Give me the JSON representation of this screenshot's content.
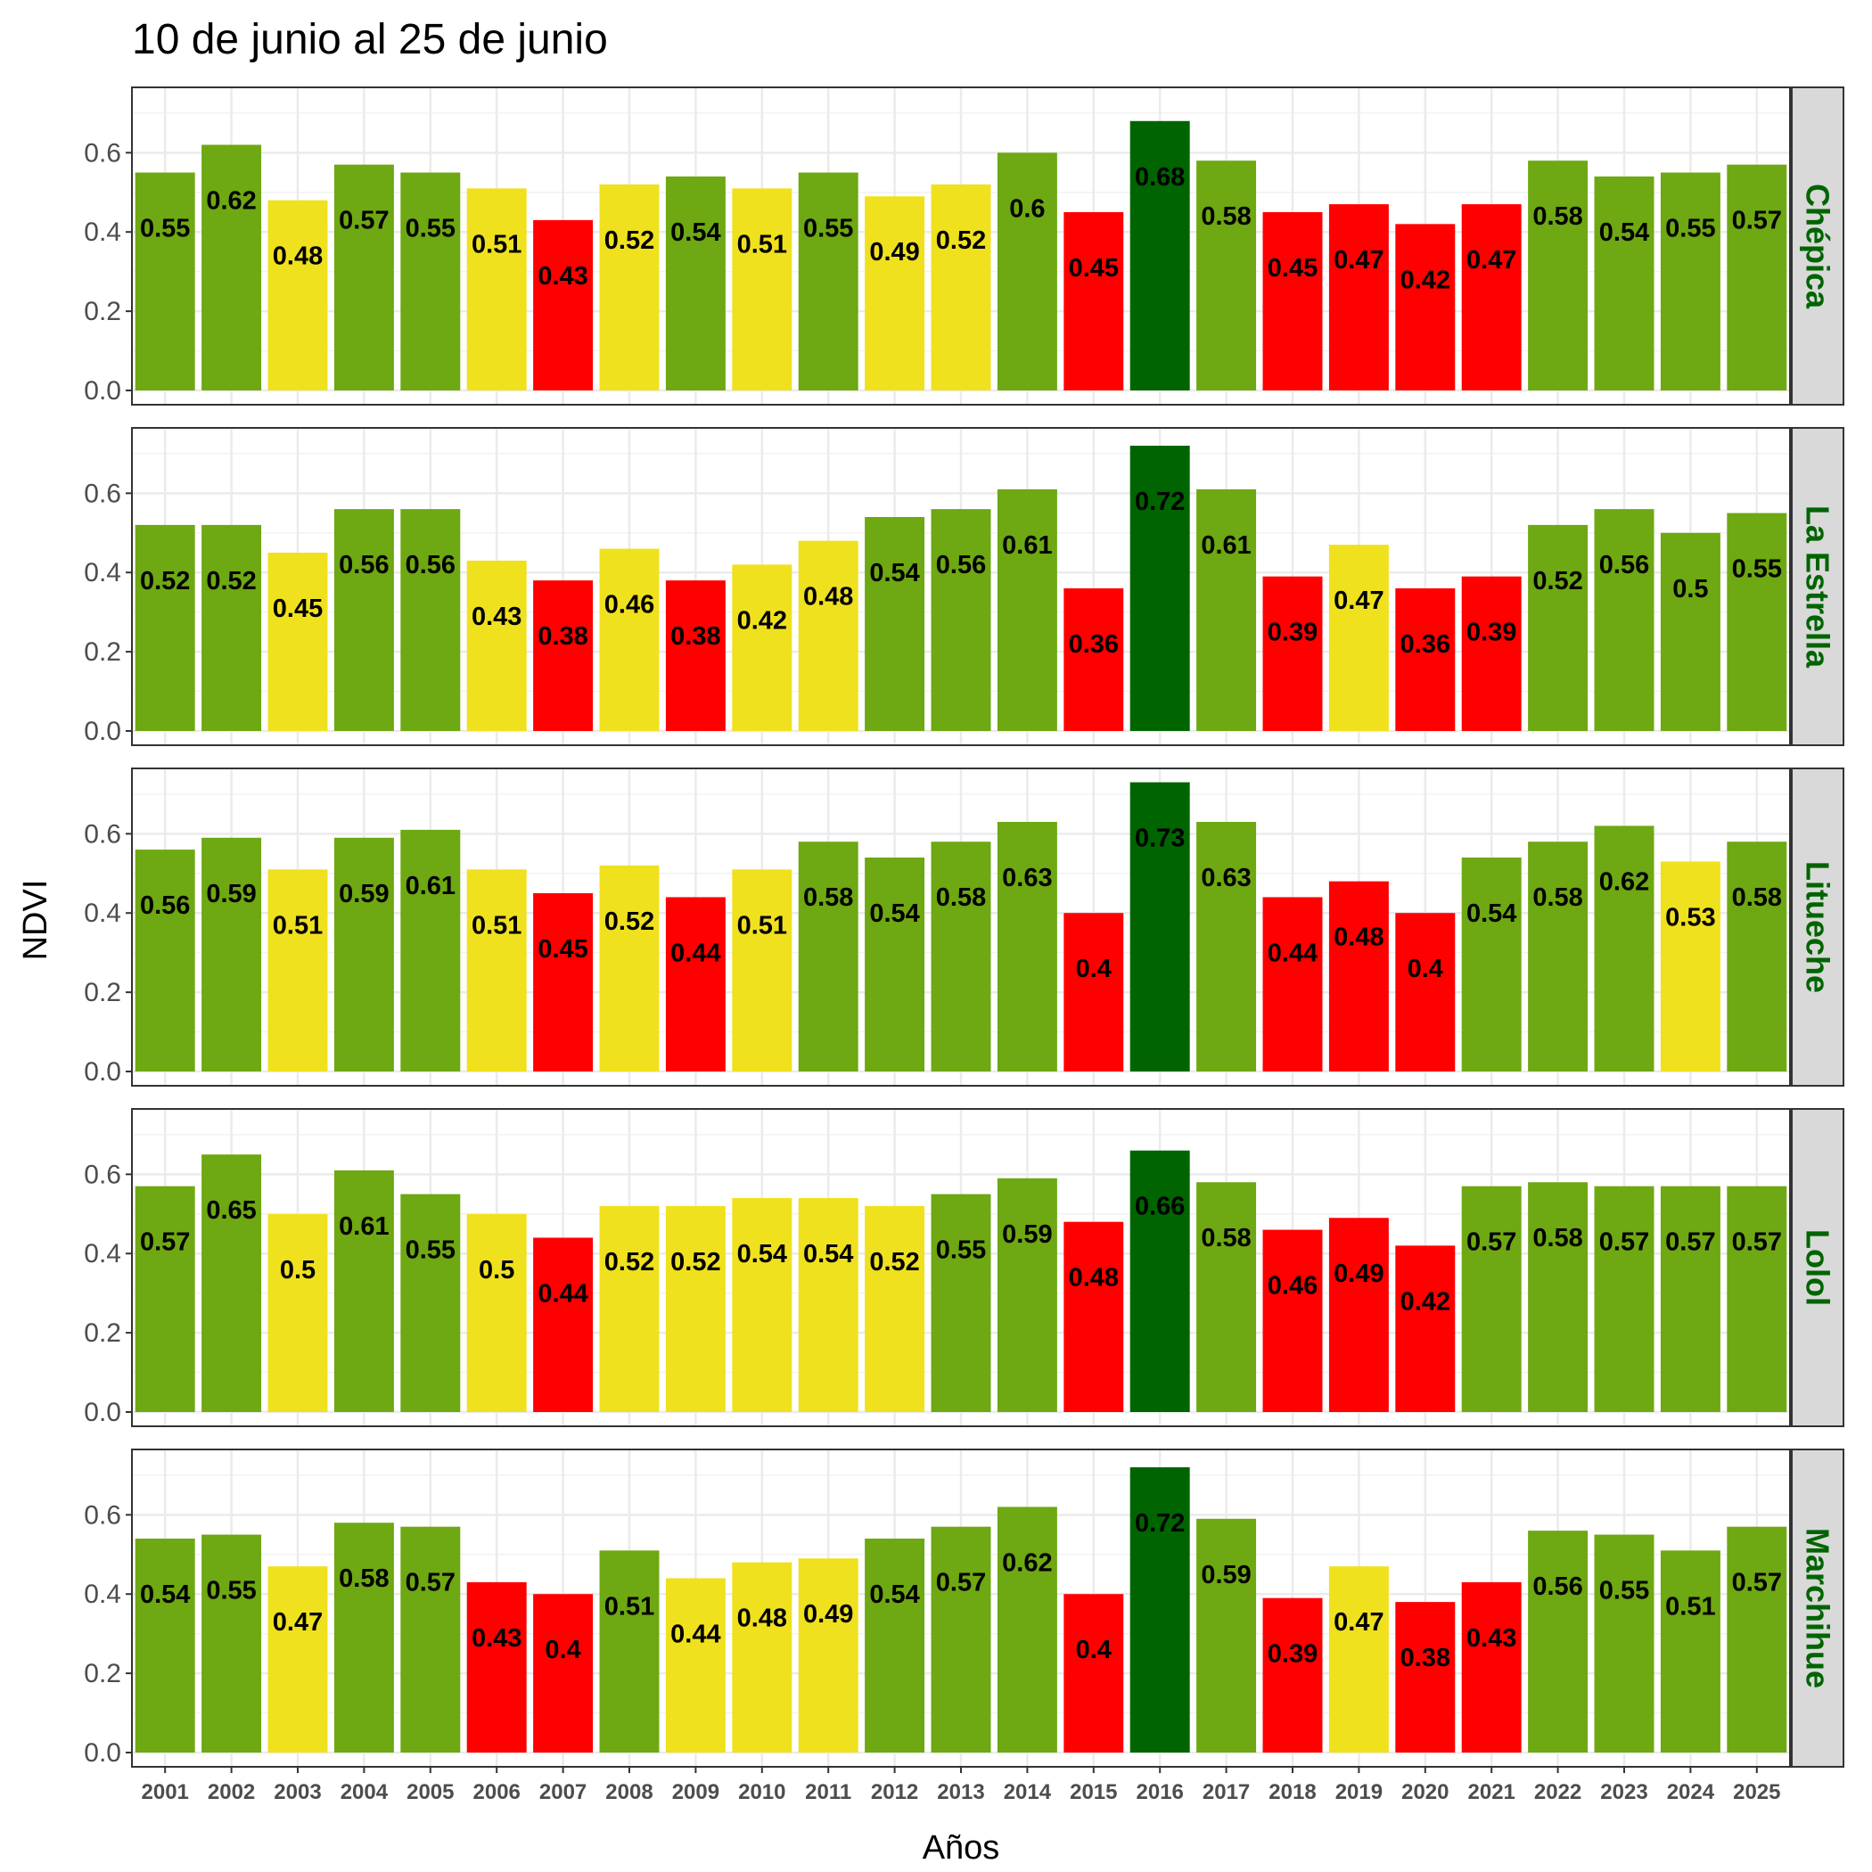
{
  "chart_data": {
    "type": "bar",
    "title": "10 de junio al 25 de junio",
    "xlabel": "Años",
    "ylabel": "NDVI",
    "ylim": [
      0,
      0.75
    ],
    "yticks": [
      "0.0",
      "0.2",
      "0.4",
      "0.6"
    ],
    "ytick_values": [
      0,
      0.2,
      0.4,
      0.6
    ],
    "grid": true,
    "facet_strip_position": "right",
    "categories": [
      "2001",
      "2002",
      "2003",
      "2004",
      "2005",
      "2006",
      "2007",
      "2008",
      "2009",
      "2010",
      "2011",
      "2012",
      "2013",
      "2014",
      "2015",
      "2016",
      "2017",
      "2018",
      "2019",
      "2020",
      "2021",
      "2022",
      "2023",
      "2024",
      "2025"
    ],
    "colors": {
      "red": "#ff0000",
      "yellow": "#f0e11e",
      "green": "#6ea812",
      "darkgreen": "#006400",
      "strip_bg": "#d9d9d9",
      "strip_text": "#006400"
    },
    "panels": [
      {
        "name": "Chépica",
        "values": [
          0.55,
          0.62,
          0.48,
          0.57,
          0.55,
          0.51,
          0.43,
          0.52,
          0.54,
          0.51,
          0.55,
          0.49,
          0.52,
          0.6,
          0.45,
          0.68,
          0.58,
          0.45,
          0.47,
          0.42,
          0.47,
          0.58,
          0.54,
          0.55,
          0.57
        ],
        "labels": [
          "0.55",
          "0.62",
          "0.48",
          "0.57",
          "0.55",
          "0.51",
          "0.43",
          "0.52",
          "0.54",
          "0.51",
          "0.55",
          "0.49",
          "0.52",
          "0.6",
          "0.45",
          "0.68",
          "0.58",
          "0.45",
          "0.47",
          "0.42",
          "0.47",
          "0.58",
          "0.54",
          "0.55",
          "0.57"
        ],
        "color_classes": [
          "green",
          "green",
          "yellow",
          "green",
          "green",
          "yellow",
          "red",
          "yellow",
          "green",
          "yellow",
          "green",
          "yellow",
          "yellow",
          "green",
          "red",
          "darkgreen",
          "green",
          "red",
          "red",
          "red",
          "red",
          "green",
          "green",
          "green",
          "green"
        ]
      },
      {
        "name": "La Estrella",
        "values": [
          0.52,
          0.52,
          0.45,
          0.56,
          0.56,
          0.43,
          0.38,
          0.46,
          0.38,
          0.42,
          0.48,
          0.54,
          0.56,
          0.61,
          0.36,
          0.72,
          0.61,
          0.39,
          0.47,
          0.36,
          0.39,
          0.52,
          0.56,
          0.5,
          0.55
        ],
        "labels": [
          "0.52",
          "0.52",
          "0.45",
          "0.56",
          "0.56",
          "0.43",
          "0.38",
          "0.46",
          "0.38",
          "0.42",
          "0.48",
          "0.54",
          "0.56",
          "0.61",
          "0.36",
          "0.72",
          "0.61",
          "0.39",
          "0.47",
          "0.36",
          "0.39",
          "0.52",
          "0.56",
          "0.5",
          "0.55"
        ],
        "color_classes": [
          "green",
          "green",
          "yellow",
          "green",
          "green",
          "yellow",
          "red",
          "yellow",
          "red",
          "yellow",
          "yellow",
          "green",
          "green",
          "green",
          "red",
          "darkgreen",
          "green",
          "red",
          "yellow",
          "red",
          "red",
          "green",
          "green",
          "green",
          "green"
        ]
      },
      {
        "name": "Litueche",
        "values": [
          0.56,
          0.59,
          0.51,
          0.59,
          0.61,
          0.51,
          0.45,
          0.52,
          0.44,
          0.51,
          0.58,
          0.54,
          0.58,
          0.63,
          0.4,
          0.73,
          0.63,
          0.44,
          0.48,
          0.4,
          0.54,
          0.58,
          0.62,
          0.53,
          0.58
        ],
        "labels": [
          "0.56",
          "0.59",
          "0.51",
          "0.59",
          "0.61",
          "0.51",
          "0.45",
          "0.52",
          "0.44",
          "0.51",
          "0.58",
          "0.54",
          "0.58",
          "0.63",
          "0.4",
          "0.73",
          "0.63",
          "0.44",
          "0.48",
          "0.4",
          "0.54",
          "0.58",
          "0.62",
          "0.53",
          "0.58"
        ],
        "color_classes": [
          "green",
          "green",
          "yellow",
          "green",
          "green",
          "yellow",
          "red",
          "yellow",
          "red",
          "yellow",
          "green",
          "green",
          "green",
          "green",
          "red",
          "darkgreen",
          "green",
          "red",
          "red",
          "red",
          "green",
          "green",
          "green",
          "yellow",
          "green"
        ]
      },
      {
        "name": "Lolol",
        "values": [
          0.57,
          0.65,
          0.5,
          0.61,
          0.55,
          0.5,
          0.44,
          0.52,
          0.52,
          0.54,
          0.54,
          0.52,
          0.55,
          0.59,
          0.48,
          0.66,
          0.58,
          0.46,
          0.49,
          0.42,
          0.57,
          0.58,
          0.57,
          0.57,
          0.57
        ],
        "labels": [
          "0.57",
          "0.65",
          "0.5",
          "0.61",
          "0.55",
          "0.5",
          "0.44",
          "0.52",
          "0.52",
          "0.54",
          "0.54",
          "0.52",
          "0.55",
          "0.59",
          "0.48",
          "0.66",
          "0.58",
          "0.46",
          "0.49",
          "0.42",
          "0.57",
          "0.58",
          "0.57",
          "0.57",
          "0.57"
        ],
        "color_classes": [
          "green",
          "green",
          "yellow",
          "green",
          "green",
          "yellow",
          "red",
          "yellow",
          "yellow",
          "yellow",
          "yellow",
          "yellow",
          "green",
          "green",
          "red",
          "darkgreen",
          "green",
          "red",
          "red",
          "red",
          "green",
          "green",
          "green",
          "green",
          "green"
        ]
      },
      {
        "name": "Marchihue",
        "values": [
          0.54,
          0.55,
          0.47,
          0.58,
          0.57,
          0.43,
          0.4,
          0.51,
          0.44,
          0.48,
          0.49,
          0.54,
          0.57,
          0.62,
          0.4,
          0.72,
          0.59,
          0.39,
          0.47,
          0.38,
          0.43,
          0.56,
          0.55,
          0.51,
          0.57
        ],
        "labels": [
          "0.54",
          "0.55",
          "0.47",
          "0.58",
          "0.57",
          "0.43",
          "0.4",
          "0.51",
          "0.44",
          "0.48",
          "0.49",
          "0.54",
          "0.57",
          "0.62",
          "0.4",
          "0.72",
          "0.59",
          "0.39",
          "0.47",
          "0.38",
          "0.43",
          "0.56",
          "0.55",
          "0.51",
          "0.57"
        ],
        "color_classes": [
          "green",
          "green",
          "yellow",
          "green",
          "green",
          "red",
          "red",
          "green",
          "yellow",
          "yellow",
          "yellow",
          "green",
          "green",
          "green",
          "red",
          "darkgreen",
          "green",
          "red",
          "yellow",
          "red",
          "red",
          "green",
          "green",
          "green",
          "green"
        ]
      }
    ]
  }
}
